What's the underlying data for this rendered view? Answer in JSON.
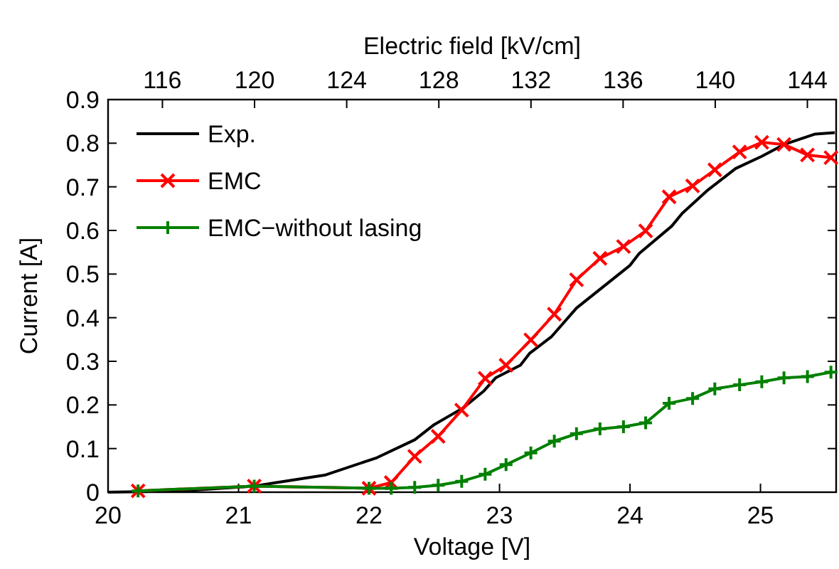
{
  "chart_data": {
    "type": "line",
    "xlabel": "Voltage [V]",
    "ylabel": "Current [A]",
    "x2label": "Electric field [kV/cm]",
    "xlim": [
      20,
      25.58
    ],
    "xticks": [
      20,
      21,
      22,
      23,
      24,
      25
    ],
    "x2lim": [
      113.64,
      145.25
    ],
    "x2ticks": [
      116,
      120,
      124,
      128,
      132,
      136,
      140,
      144
    ],
    "ylim": [
      0,
      0.9
    ],
    "yticks": [
      0,
      0.1,
      0.2,
      0.3,
      0.4,
      0.5,
      0.6,
      0.7,
      0.8,
      0.9
    ],
    "grid": false,
    "legend": "top left",
    "series": [
      {
        "name": "Exp.",
        "color": "#000000",
        "marker": "none",
        "x": [
          20.0,
          20.56,
          21.12,
          21.29,
          21.66,
          22.06,
          22.35,
          22.5,
          22.72,
          22.88,
          22.97,
          23.16,
          23.23,
          23.4,
          23.59,
          24.0,
          24.07,
          24.32,
          24.4,
          24.59,
          24.81,
          25.01,
          25.18,
          25.42,
          25.57
        ],
        "values": [
          0,
          0.003,
          0.014,
          0.022,
          0.039,
          0.079,
          0.12,
          0.155,
          0.193,
          0.232,
          0.262,
          0.291,
          0.318,
          0.357,
          0.422,
          0.52,
          0.547,
          0.61,
          0.639,
          0.691,
          0.742,
          0.77,
          0.797,
          0.821,
          0.824
        ]
      },
      {
        "name": "EMC",
        "color": "#ff0000",
        "marker": "x",
        "x": [
          20.23,
          21.12,
          22.0,
          22.17,
          22.35,
          22.53,
          22.71,
          22.89,
          23.05,
          23.24,
          23.42,
          23.59,
          23.77,
          23.95,
          24.12,
          24.3,
          24.48,
          24.65,
          24.84,
          25.01,
          25.18,
          25.36,
          25.54
        ],
        "values": [
          0.003,
          0.014,
          0.009,
          0.022,
          0.082,
          0.128,
          0.188,
          0.261,
          0.291,
          0.349,
          0.408,
          0.487,
          0.536,
          0.563,
          0.599,
          0.677,
          0.702,
          0.739,
          0.78,
          0.802,
          0.797,
          0.773,
          0.767
        ]
      },
      {
        "name": "EMC−without lasing",
        "color": "#008000",
        "marker": "cross",
        "x": [
          20.23,
          21.12,
          22.0,
          22.17,
          22.35,
          22.53,
          22.71,
          22.89,
          23.05,
          23.24,
          23.42,
          23.59,
          23.77,
          23.95,
          24.12,
          24.3,
          24.48,
          24.65,
          24.84,
          25.01,
          25.18,
          25.36,
          25.54
        ],
        "values": [
          0.003,
          0.014,
          0.009,
          0.009,
          0.011,
          0.016,
          0.025,
          0.041,
          0.063,
          0.09,
          0.117,
          0.134,
          0.145,
          0.15,
          0.159,
          0.204,
          0.215,
          0.237,
          0.246,
          0.253,
          0.262,
          0.265,
          0.275
        ]
      }
    ]
  }
}
